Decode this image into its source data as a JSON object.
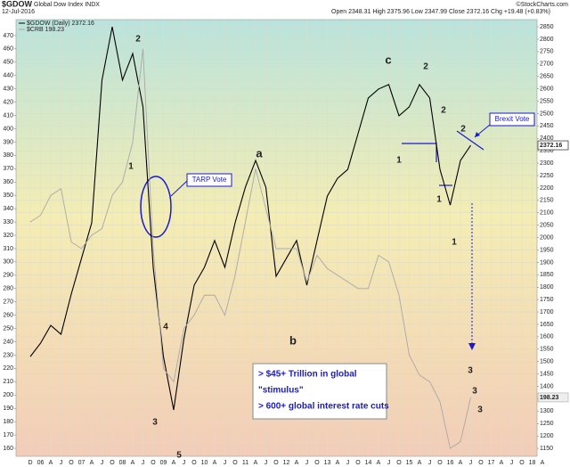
{
  "chart_data": {
    "type": "line",
    "title": "$GDOW",
    "subtitle": "Global Dow Index INDX",
    "date": "12-Jul-2016",
    "quote": "Open 2348.31  High 2375.96  Low 2347.99  Close 2372.16  Chg +19.48 (+0.83%)",
    "credit": "©StockCharts.com",
    "categories": [
      "D",
      "06",
      "A",
      "J",
      "O",
      "07",
      "A",
      "J",
      "O",
      "08",
      "A",
      "J",
      "O",
      "09",
      "A",
      "J",
      "O",
      "10",
      "A",
      "J",
      "O",
      "11",
      "A",
      "J",
      "O",
      "12",
      "A",
      "J",
      "O",
      "13",
      "A",
      "J",
      "O",
      "14",
      "A",
      "J",
      "O",
      "15",
      "A",
      "J",
      "O",
      "16",
      "A",
      "J",
      "O",
      "17",
      "A",
      "J",
      "O",
      "18",
      "A"
    ],
    "series": [
      {
        "name": "$GDOW (Daily) 2372.16",
        "color": "#000000",
        "axis": "y2",
        "values": [
          1520,
          1574,
          1646,
          1610,
          1772,
          1916,
          2060,
          2635,
          2850,
          2635,
          2742,
          2527,
          1880,
          1520,
          1305,
          1592,
          1808,
          1880,
          1988,
          1880,
          2060,
          2203,
          2311,
          2203,
          1844,
          1916,
          1988,
          1808,
          1988,
          2167,
          2239,
          2275,
          2419,
          2563,
          2599,
          2617,
          2491,
          2527,
          2617,
          2563,
          2275,
          2131,
          2311,
          2372.16,
          null,
          null,
          null,
          null,
          null,
          null,
          null
        ]
      },
      {
        "name": "$CRB 198.23",
        "color": "#a8a8a8",
        "axis": "y",
        "values": [
          330,
          335,
          350,
          355,
          315,
          310,
          320,
          325,
          350,
          360,
          390,
          460,
          310,
          220,
          210,
          250,
          260,
          275,
          275,
          260,
          290,
          330,
          370,
          340,
          310,
          310,
          310,
          285,
          305,
          295,
          290,
          285,
          280,
          280,
          305,
          300,
          275,
          230,
          215,
          210,
          195,
          160,
          165,
          198.23,
          null,
          null,
          null,
          null,
          null,
          null,
          null
        ]
      }
    ],
    "ylim": [
      154,
      482
    ],
    "yticks": [
      160,
      170,
      180,
      190,
      200,
      210,
      220,
      230,
      240,
      250,
      260,
      270,
      280,
      290,
      300,
      310,
      320,
      330,
      340,
      350,
      360,
      370,
      380,
      390,
      400,
      410,
      420,
      430,
      440,
      450,
      460,
      470
    ],
    "y2lim": [
      1118,
      2879
    ],
    "y2ticks": [
      1150,
      1200,
      1250,
      1300,
      1350,
      1400,
      1450,
      1500,
      1550,
      1600,
      1650,
      1700,
      1750,
      1800,
      1850,
      1900,
      1950,
      2000,
      2050,
      2100,
      2150,
      2200,
      2250,
      2300,
      2350,
      2400,
      2450,
      2500,
      2550,
      2600,
      2650,
      2700,
      2750,
      2800,
      2850
    ],
    "grid": true,
    "annotations": [
      {
        "text": "2",
        "color": "#2222cc"
      },
      {
        "text": "1",
        "color": "#2222cc"
      },
      {
        "text": "4",
        "color": "#2222cc"
      },
      {
        "text": "3",
        "color": "#2222cc"
      },
      {
        "text": "5",
        "color": "#2222cc"
      },
      {
        "text": "a",
        "color": "#2222cc"
      },
      {
        "text": "b",
        "color": "#2222cc"
      },
      {
        "text": "c",
        "color": "#2222cc"
      },
      {
        "text": "2",
        "color": "#2222cc"
      },
      {
        "text": "1",
        "color": "#2222cc"
      },
      {
        "text": "2",
        "color": "#dd2222"
      },
      {
        "text": "1",
        "color": "#dd2222"
      },
      {
        "text": "2",
        "color": "#22aa22"
      },
      {
        "text": "1",
        "color": "#22aa22"
      },
      {
        "text": "3",
        "color": "#22aa22"
      },
      {
        "text": "3",
        "color": "#dd2222"
      },
      {
        "text": "3",
        "color": "#2222cc"
      }
    ],
    "callouts": [
      "TARP Vote",
      "Brexit Vote"
    ],
    "text_box": [
      "> $45+ Trillion in global",
      "\"stimulus\"",
      "> 600+ global interest rate cuts"
    ]
  }
}
